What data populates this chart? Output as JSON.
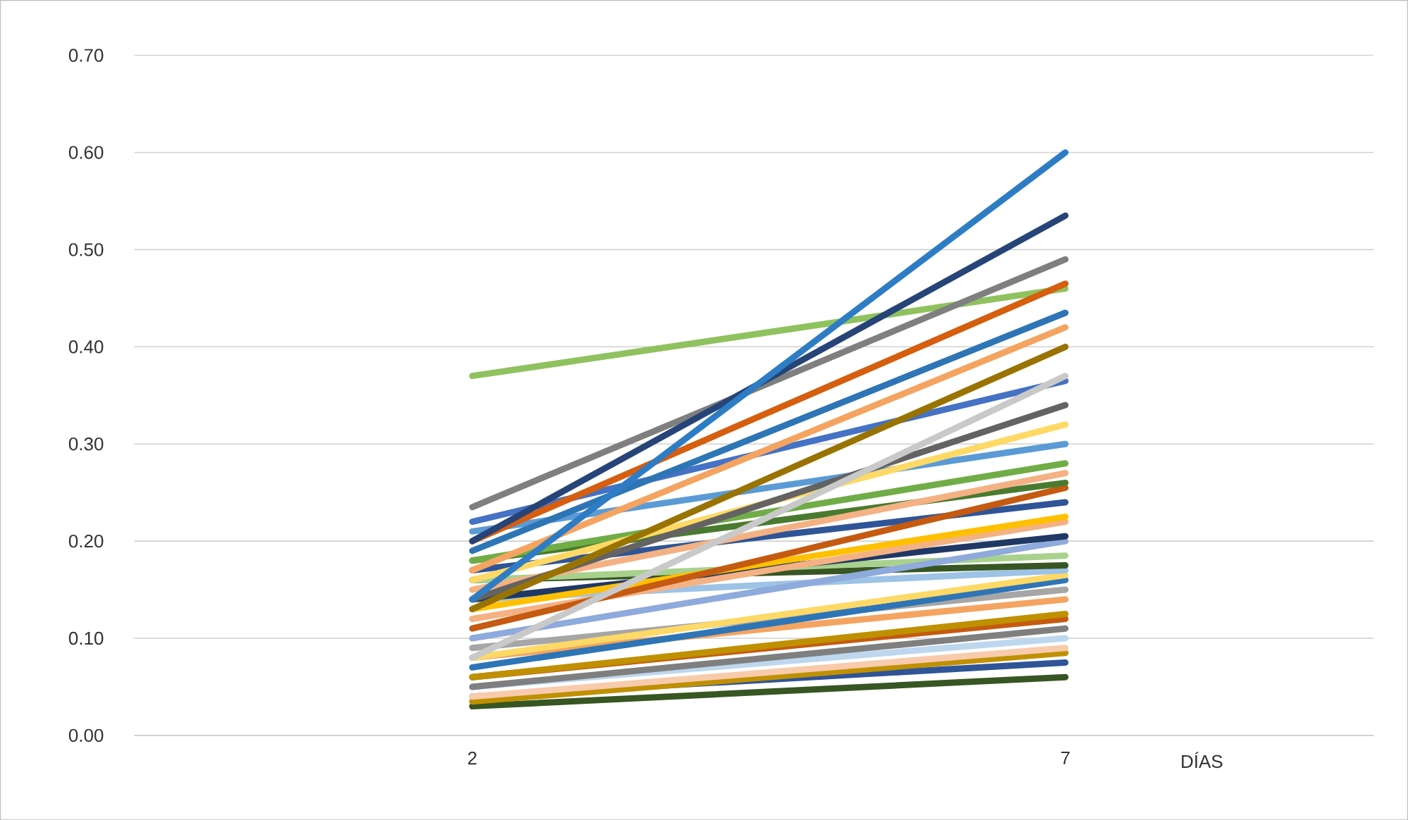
{
  "chart_data": {
    "type": "line",
    "categories": [
      "2",
      "7"
    ],
    "xlabel": "DÍAS",
    "ylim": [
      0,
      0.7
    ],
    "yticks": [
      {
        "value": 0,
        "label": "0.00"
      },
      {
        "value": 0.1,
        "label": "0.10"
      },
      {
        "value": 0.2,
        "label": "0.20"
      },
      {
        "value": 0.3,
        "label": "0.30"
      },
      {
        "value": 0.4,
        "label": "0.40"
      },
      {
        "value": 0.5,
        "label": "0.50"
      },
      {
        "value": 0.6,
        "label": "0.60"
      },
      {
        "value": 0.7,
        "label": "0.70"
      }
    ],
    "grid": "y",
    "marker": "none",
    "line_style": "solid",
    "series": [
      {
        "color": "#375623",
        "values": [
          0.03,
          0.06
        ]
      },
      {
        "color": "#2f5597",
        "values": [
          0.04,
          0.075
        ]
      },
      {
        "color": "#bf9000",
        "values": [
          0.035,
          0.085
        ]
      },
      {
        "color": "#f8cbad",
        "values": [
          0.04,
          0.09
        ]
      },
      {
        "color": "#bdd7ee",
        "values": [
          0.05,
          0.1
        ]
      },
      {
        "color": "#7f7f7f",
        "values": [
          0.05,
          0.11
        ]
      },
      {
        "color": "#c55a11",
        "values": [
          0.06,
          0.12
        ]
      },
      {
        "color": "#bf9000",
        "values": [
          0.06,
          0.125
        ]
      },
      {
        "color": "#f4a460",
        "values": [
          0.08,
          0.14
        ]
      },
      {
        "color": "#a6a6a6",
        "values": [
          0.09,
          0.15
        ]
      },
      {
        "color": "#2e75b6",
        "values": [
          0.07,
          0.16
        ]
      },
      {
        "color": "#ffd966",
        "values": [
          0.08,
          0.165
        ]
      },
      {
        "color": "#9dc3e6",
        "values": [
          0.14,
          0.17
        ]
      },
      {
        "color": "#375623",
        "values": [
          0.16,
          0.175
        ]
      },
      {
        "color": "#a9d18e",
        "values": [
          0.16,
          0.185
        ]
      },
      {
        "color": "#8faadc",
        "values": [
          0.1,
          0.2
        ]
      },
      {
        "color": "#203864",
        "values": [
          0.14,
          0.205
        ]
      },
      {
        "color": "#f4b183",
        "values": [
          0.12,
          0.22
        ]
      },
      {
        "color": "#ffc000",
        "values": [
          0.13,
          0.225
        ]
      },
      {
        "color": "#2f5597",
        "values": [
          0.17,
          0.24
        ]
      },
      {
        "color": "#c55a11",
        "values": [
          0.11,
          0.255
        ]
      },
      {
        "color": "#4a7a2f",
        "values": [
          0.18,
          0.26
        ]
      },
      {
        "color": "#f4b183",
        "values": [
          0.15,
          0.27
        ]
      },
      {
        "color": "#70ad47",
        "values": [
          0.18,
          0.28
        ]
      },
      {
        "color": "#5b9bd5",
        "values": [
          0.21,
          0.3
        ]
      },
      {
        "color": "#ffd966",
        "values": [
          0.16,
          0.32
        ]
      },
      {
        "color": "#636363",
        "values": [
          0.14,
          0.34
        ]
      },
      {
        "color": "#4472c4",
        "values": [
          0.22,
          0.365
        ]
      },
      {
        "color": "#c9c9c9",
        "values": [
          0.08,
          0.37
        ]
      },
      {
        "color": "#997300",
        "values": [
          0.13,
          0.4
        ]
      },
      {
        "color": "#f4a460",
        "values": [
          0.17,
          0.42
        ]
      },
      {
        "color": "#2e75b6",
        "values": [
          0.19,
          0.435
        ]
      },
      {
        "color": "#8fc25f",
        "values": [
          0.37,
          0.46
        ]
      },
      {
        "color": "#d55e0f",
        "values": [
          0.2,
          0.465
        ]
      },
      {
        "color": "#7f7f7f",
        "values": [
          0.235,
          0.49
        ]
      },
      {
        "color": "#264478",
        "values": [
          0.2,
          0.535
        ]
      },
      {
        "color": "#2e7dc4",
        "values": [
          0.14,
          0.6
        ]
      }
    ]
  }
}
